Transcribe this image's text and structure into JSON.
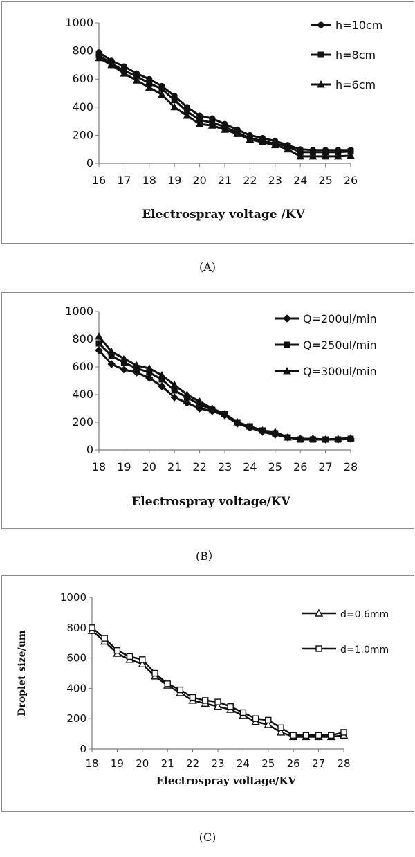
{
  "chart_data": [
    {
      "id": "A",
      "type": "line",
      "title": "",
      "xlabel": "Electrospray voltage /KV",
      "ylabel": "",
      "xlim": [
        16,
        26
      ],
      "ylim": [
        0,
        1000
      ],
      "xticks": [
        16,
        17,
        18,
        19,
        20,
        21,
        22,
        23,
        24,
        25,
        26
      ],
      "yticks": [
        0,
        200,
        400,
        600,
        800,
        1000
      ],
      "legend_position": "top-right",
      "x": [
        16,
        16.5,
        17,
        17.5,
        18,
        18.5,
        19,
        19.5,
        20,
        20.5,
        21,
        21.5,
        22,
        22.5,
        23,
        23.5,
        24,
        24.5,
        25,
        25.5,
        26
      ],
      "series": [
        {
          "name": "h=10cm",
          "marker": "circle",
          "values": [
            790,
            730,
            690,
            640,
            600,
            550,
            480,
            400,
            340,
            320,
            280,
            240,
            200,
            180,
            160,
            130,
            100,
            95,
            95,
            95,
            95
          ]
        },
        {
          "name": "h=8cm",
          "marker": "square",
          "values": [
            770,
            710,
            660,
            620,
            570,
            530,
            450,
            370,
            310,
            290,
            260,
            220,
            180,
            160,
            140,
            120,
            80,
            80,
            80,
            80,
            85
          ]
        },
        {
          "name": "h=6cm",
          "marker": "triangle",
          "values": [
            750,
            700,
            640,
            590,
            540,
            490,
            400,
            340,
            280,
            270,
            240,
            210,
            170,
            150,
            130,
            100,
            50,
            50,
            50,
            50,
            55
          ]
        }
      ]
    },
    {
      "id": "B",
      "type": "line",
      "title": "",
      "xlabel": "Electrospray  voltage/KV",
      "ylabel": "",
      "xlim": [
        18,
        28
      ],
      "ylim": [
        0,
        1000
      ],
      "xticks": [
        18,
        19,
        20,
        21,
        22,
        23,
        24,
        25,
        26,
        27,
        28
      ],
      "yticks": [
        0,
        200,
        400,
        600,
        800,
        1000
      ],
      "legend_position": "top-right",
      "x": [
        18,
        18.5,
        19,
        19.5,
        20,
        20.5,
        21,
        21.5,
        22,
        22.5,
        23,
        23.5,
        24,
        24.5,
        25,
        25.5,
        26,
        26.5,
        27,
        27.5,
        28
      ],
      "series": [
        {
          "name": "Q=200ul/min",
          "marker": "diamond",
          "values": [
            720,
            620,
            580,
            560,
            520,
            460,
            380,
            340,
            300,
            280,
            250,
            190,
            160,
            130,
            110,
            90,
            80,
            80,
            75,
            75,
            80
          ]
        },
        {
          "name": "Q=250ul/min",
          "marker": "square",
          "values": [
            770,
            680,
            630,
            590,
            560,
            510,
            430,
            380,
            330,
            290,
            260,
            200,
            170,
            140,
            120,
            90,
            75,
            75,
            75,
            75,
            80
          ]
        },
        {
          "name": "Q=300ul/min",
          "marker": "triangle",
          "values": [
            820,
            710,
            660,
            610,
            590,
            540,
            470,
            400,
            350,
            300,
            260,
            200,
            170,
            140,
            130,
            90,
            80,
            80,
            75,
            80,
            85
          ]
        }
      ]
    },
    {
      "id": "C",
      "type": "line",
      "title": "",
      "xlabel": "Electrospray voltage/KV",
      "ylabel": "Droplet size/um",
      "xlim": [
        18,
        28
      ],
      "ylim": [
        0,
        1000
      ],
      "xticks": [
        18,
        19,
        20,
        21,
        22,
        23,
        24,
        25,
        26,
        27,
        28
      ],
      "yticks": [
        0,
        200,
        400,
        600,
        800,
        1000
      ],
      "legend_position": "top-right",
      "x": [
        18,
        18.5,
        19,
        19.5,
        20,
        20.5,
        21,
        21.5,
        22,
        22.5,
        23,
        23.5,
        24,
        24.5,
        25,
        25.5,
        26,
        26.5,
        27,
        27.5,
        28
      ],
      "series": [
        {
          "name": "d=0.6mm",
          "marker": "triangle-open",
          "values": [
            780,
            710,
            630,
            590,
            560,
            480,
            420,
            370,
            320,
            300,
            280,
            260,
            220,
            180,
            160,
            110,
            80,
            80,
            80,
            80,
            90
          ]
        },
        {
          "name": "d=1.0mm",
          "marker": "square-open",
          "values": [
            800,
            730,
            650,
            610,
            590,
            500,
            430,
            390,
            340,
            320,
            310,
            280,
            240,
            200,
            190,
            140,
            90,
            90,
            90,
            90,
            110
          ]
        }
      ]
    }
  ],
  "captions": {
    "a": "(A)",
    "b": "(B）",
    "c": "(C)"
  }
}
